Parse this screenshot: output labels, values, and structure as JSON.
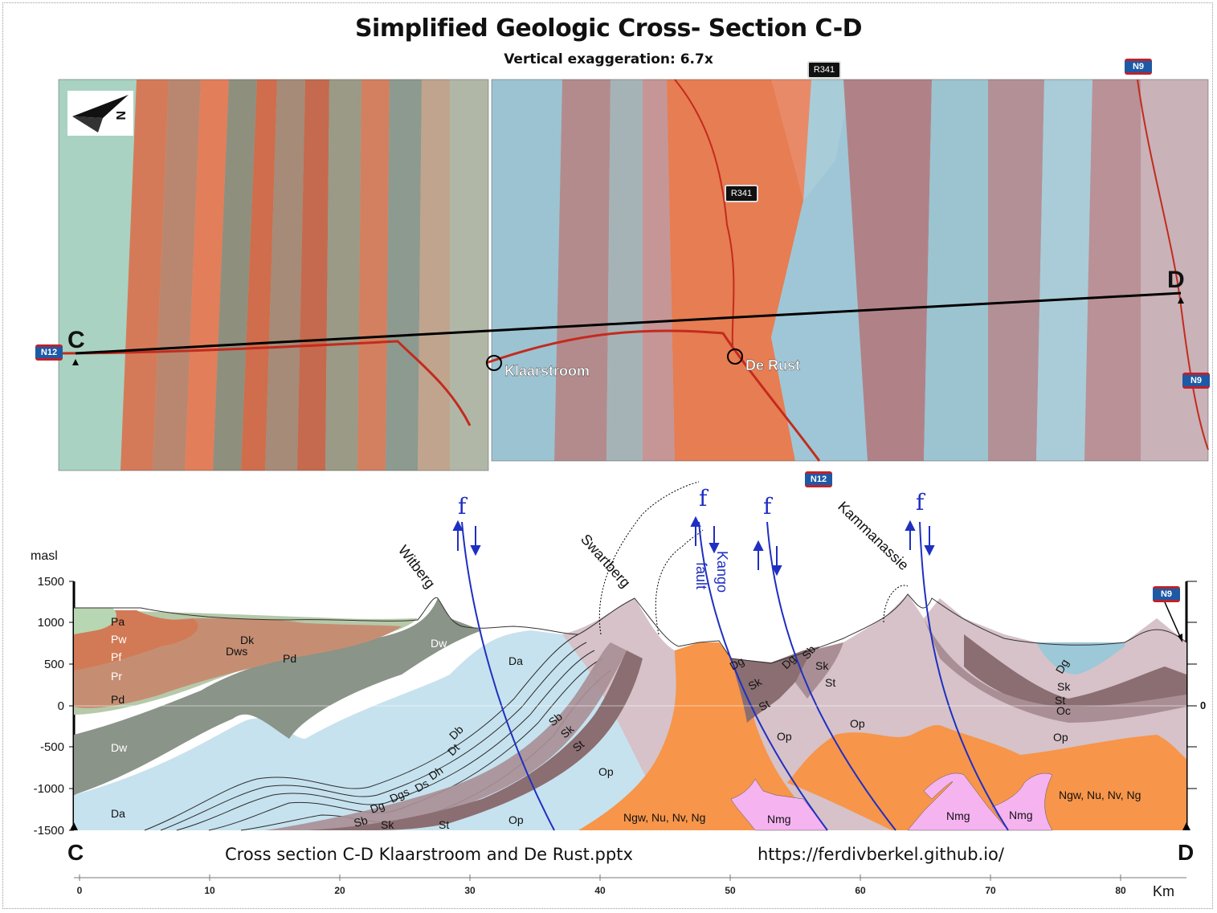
{
  "title": "Simplified Geologic Cross- Section C-D",
  "subtitle": "Vertical exaggeration: 6.7x",
  "map": {
    "point_c": "C",
    "point_d": "D",
    "klaarstroom": "Klaarstroom",
    "de_rust": "De Rust",
    "compass_letter": "N",
    "road_shields": [
      "N12",
      "N9",
      "N9",
      "N12"
    ],
    "road_tags": [
      "R341",
      "R341"
    ]
  },
  "section": {
    "y_axis_label": "masl",
    "y_ticks": [
      "1500",
      "1000",
      "500",
      "0",
      "-500",
      "-1000",
      "-1500"
    ],
    "right_tick": "0",
    "mountains": [
      "Witberg",
      "Swartberg",
      "Kammanassie"
    ],
    "fault_symbol": "f",
    "kango_fault": [
      "Kango",
      "fault"
    ],
    "units": [
      "Pa",
      "Pw",
      "Pf",
      "Pr",
      "Pd",
      "Dw",
      "Da",
      "Dk",
      "Dws",
      "Pd",
      "Dw",
      "Da",
      "Op",
      "Sb",
      "Sk",
      "St",
      "Db",
      "Dt",
      "Dh",
      "Ds",
      "Dgs",
      "Dg",
      "Sb",
      "Sk",
      "St",
      "Op",
      "Ngw, Nu, Nv, Ng",
      "Nmg",
      "Dg",
      "Sk",
      "St",
      "Dg",
      "Sb",
      "Sk",
      "St",
      "Op",
      "Op",
      "Nmg",
      "Nmg",
      "Op",
      "Dg",
      "Sk",
      "St",
      "Oc",
      "Ngw, Nu, Nv, Ng"
    ],
    "n9_shield": "N9"
  },
  "scale": {
    "ticks": [
      "0",
      "10",
      "20",
      "30",
      "40",
      "50",
      "60",
      "70",
      "80"
    ],
    "unit": "Km"
  },
  "footer": {
    "file": "Cross section C-D Klaarstroom and De Rust.pptx",
    "url": "https://ferdivberkel.github.io/",
    "c": "C",
    "d": "D"
  },
  "colors": {
    "map_orange": "#d9734e",
    "map_pink": "#b98a86",
    "map_blue": "#9ccbdc",
    "granite_orange": "#f7954a",
    "op_mauve": "#d6c2c8",
    "da_blue": "#c6e2ee",
    "dw_grey": "#8a9488",
    "nmg_pink": "#f5b3f0",
    "fault_blue": "#1f2fc2"
  }
}
